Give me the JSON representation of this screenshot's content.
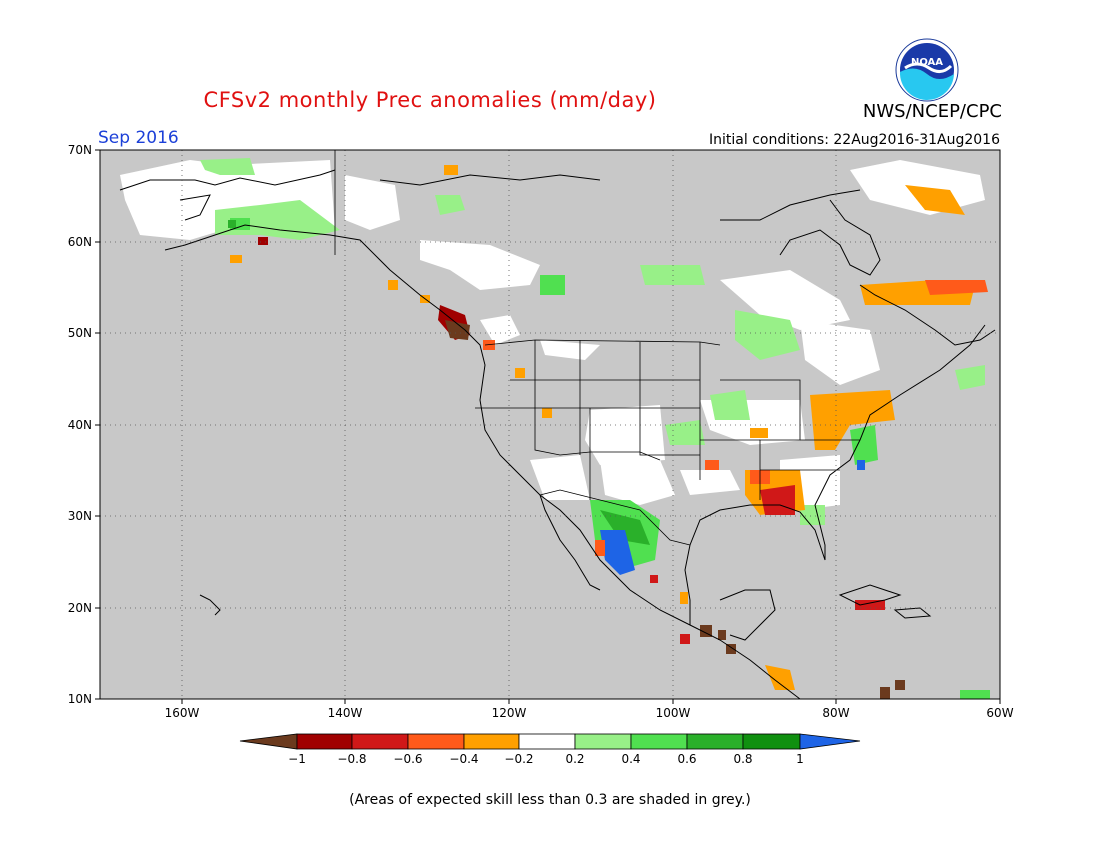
{
  "header": {
    "title": "CFSv2 monthly Prec anomalies (mm/day)",
    "agency": "NWS/NCEP/CPC",
    "logo_text": "NOAA",
    "month": "Sep 2016",
    "init_conditions": "Initial conditions: 22Aug2016-31Aug2016"
  },
  "map": {
    "lat_labels": [
      "70N",
      "60N",
      "50N",
      "40N",
      "30N",
      "20N",
      "10N"
    ],
    "lon_labels": [
      "160W",
      "140W",
      "120W",
      "100W",
      "80W",
      "60W"
    ],
    "extent": {
      "lon": [
        -170,
        -60
      ],
      "lat": [
        10,
        70
      ]
    },
    "background_color": "#c8c8c8",
    "grid": "dotted"
  },
  "colorbar": {
    "labels": [
      "−1",
      "−0.8",
      "−0.6",
      "−0.4",
      "−0.2",
      "0.2",
      "0.4",
      "0.6",
      "0.8",
      "1"
    ],
    "colors": [
      "#6b3a1e",
      "#a00000",
      "#d01818",
      "#ff5a1a",
      "#ffa000",
      "#ffffff",
      "#98f088",
      "#50e050",
      "#2ab02a",
      "#109010",
      "#1e64e6"
    ]
  },
  "footnote": "(Areas of expected skill less than 0.3 are shaded in grey.)"
}
